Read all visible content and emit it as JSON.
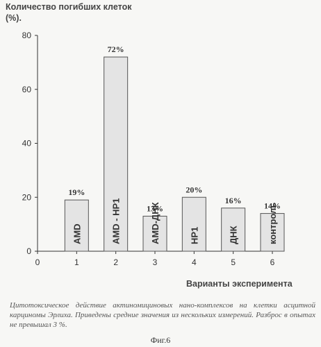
{
  "chart_data": {
    "type": "bar",
    "ylabel": "Количество погибших клеток (%).",
    "xlabel": "Варианты эксперимента",
    "ylim": [
      0,
      80
    ],
    "yticks": [
      0,
      20,
      40,
      60,
      80
    ],
    "xlim": [
      0,
      6
    ],
    "xticks": [
      0,
      1,
      2,
      3,
      4,
      5,
      6
    ],
    "grid": false,
    "bars": [
      {
        "x": 1,
        "value": 19,
        "value_label": "19%",
        "name": "AMD"
      },
      {
        "x": 2,
        "value": 72,
        "value_label": "72%",
        "name": "AMD - HP1"
      },
      {
        "x": 3,
        "value": 13,
        "value_label": "13%",
        "name": "AMD-ДНК"
      },
      {
        "x": 4,
        "value": 20,
        "value_label": "20%",
        "name": "HP1"
      },
      {
        "x": 5,
        "value": 16,
        "value_label": "16%",
        "name": "ДНК"
      },
      {
        "x": 6,
        "value": 14,
        "value_label": "14%",
        "name": "контроль"
      }
    ]
  },
  "caption": "Цитотоксическое действие актиномициновых нано-комплексов на клетки асцитной карциномы Эрлиха. Приведены средние значения из нескольких измерений. Разброс в опытах не превышал 3 %.",
  "figure_label": "Фиг.6",
  "colors": {
    "bar_fill": "#e4e4e4",
    "bar_stroke": "#555555",
    "axis": "#333333"
  }
}
